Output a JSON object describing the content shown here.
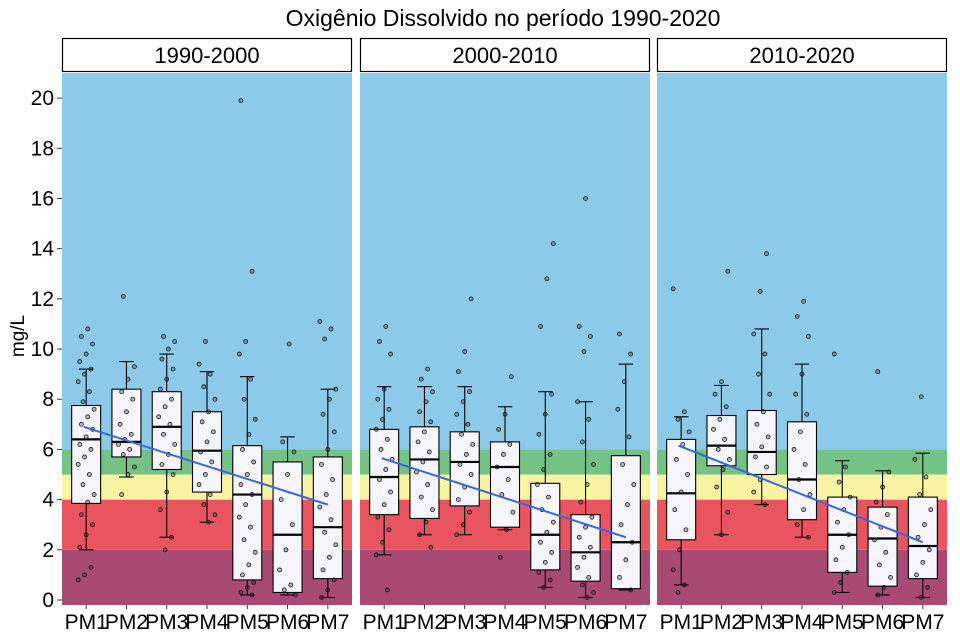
{
  "chart_data": {
    "type": "box",
    "title": "Oxigênio Dissolvido no período 1990-2020",
    "ylabel": "mg/L",
    "xlabel": "",
    "ylim": [
      -0.2,
      21.0
    ],
    "yticks": [
      0,
      2,
      4,
      6,
      8,
      10,
      12,
      14,
      16,
      18,
      20
    ],
    "categories": [
      "PM1",
      "PM2",
      "PM3",
      "PM4",
      "PM5",
      "PM6",
      "PM7"
    ],
    "background_bands": [
      {
        "from": -0.2,
        "to": 2,
        "color": "#a94a75"
      },
      {
        "from": 2,
        "to": 4,
        "color": "#e85560"
      },
      {
        "from": 4,
        "to": 5,
        "color": "#f8f4a3"
      },
      {
        "from": 5,
        "to": 6,
        "color": "#75c287"
      },
      {
        "from": 6,
        "to": 21.0,
        "color": "#8dcaea"
      }
    ],
    "colors": {
      "box_fill": "#f5f5fb",
      "trend_line": "#3a66e3",
      "point": "#000000"
    },
    "panels": [
      {
        "label": "1990-2000",
        "boxes": [
          {
            "category": "PM1",
            "low": 2.0,
            "q1": 3.85,
            "median": 6.4,
            "q3": 7.75,
            "high": 9.2,
            "points": [
              0.8,
              1.0,
              1.3,
              2.1,
              2.6,
              3.0,
              3.4,
              3.9,
              4.2,
              4.6,
              5.0,
              5.4,
              5.7,
              6.0,
              6.2,
              6.5,
              6.8,
              7.0,
              7.3,
              7.6,
              7.9,
              8.3,
              8.7,
              9.0,
              9.2,
              9.5,
              9.8,
              10.2,
              10.5,
              10.8
            ]
          },
          {
            "category": "PM2",
            "low": 4.9,
            "q1": 5.7,
            "median": 6.3,
            "q3": 8.4,
            "high": 9.5,
            "points": [
              4.2,
              5.0,
              5.3,
              5.8,
              6.0,
              6.2,
              6.4,
              6.6,
              7.0,
              7.5,
              8.0,
              8.3,
              8.8,
              9.3,
              12.1
            ]
          },
          {
            "category": "PM3",
            "low": 2.5,
            "q1": 5.2,
            "median": 6.9,
            "q3": 8.3,
            "high": 9.8,
            "points": [
              2.0,
              2.5,
              3.6,
              4.3,
              5.0,
              5.4,
              5.8,
              6.2,
              6.6,
              7.0,
              7.3,
              7.7,
              8.0,
              8.4,
              8.8,
              9.2,
              9.6,
              10.0,
              10.3,
              10.5
            ]
          },
          {
            "category": "PM4",
            "low": 3.1,
            "q1": 4.3,
            "median": 5.95,
            "q3": 7.5,
            "high": 9.1,
            "points": [
              3.1,
              3.4,
              3.8,
              4.2,
              4.6,
              5.0,
              5.5,
              5.9,
              6.3,
              6.7,
              7.1,
              7.5,
              8.0,
              8.5,
              9.0,
              9.4,
              10.3
            ]
          },
          {
            "category": "PM5",
            "low": 0.2,
            "q1": 0.8,
            "median": 4.2,
            "q3": 6.15,
            "high": 8.9,
            "points": [
              0.2,
              0.3,
              0.5,
              0.7,
              1.0,
              1.4,
              1.9,
              2.4,
              2.9,
              3.3,
              3.8,
              4.2,
              4.6,
              5.0,
              5.5,
              6.0,
              6.6,
              7.2,
              8.0,
              8.8,
              9.8,
              10.3,
              13.1,
              19.9
            ]
          },
          {
            "category": "PM6",
            "low": 0.2,
            "q1": 0.3,
            "median": 2.6,
            "q3": 5.5,
            "high": 6.5,
            "points": [
              0.2,
              0.4,
              0.6,
              1.2,
              2.0,
              3.0,
              4.0,
              5.0,
              5.9,
              6.3,
              10.2
            ]
          },
          {
            "category": "PM7",
            "low": 0.1,
            "q1": 0.85,
            "median": 2.9,
            "q3": 5.7,
            "high": 8.4,
            "points": [
              0.1,
              0.4,
              0.8,
              1.2,
              1.7,
              2.2,
              2.7,
              3.2,
              3.7,
              4.2,
              4.8,
              5.4,
              6.0,
              6.7,
              7.4,
              8.0,
              8.4,
              10.4,
              10.8,
              11.1
            ]
          }
        ],
        "trend": {
          "x0": 0.94,
          "y0": 6.9,
          "x1": 7.0,
          "y1": 3.8
        }
      },
      {
        "label": "2000-2010",
        "boxes": [
          {
            "category": "PM1",
            "low": 1.8,
            "q1": 3.4,
            "median": 4.9,
            "q3": 6.8,
            "high": 8.5,
            "points": [
              0.4,
              1.8,
              2.3,
              2.8,
              3.3,
              3.8,
              4.3,
              4.8,
              5.2,
              5.6,
              6.0,
              6.4,
              6.8,
              7.2,
              7.6,
              8.0,
              8.4,
              9.8,
              10.3,
              10.9
            ]
          },
          {
            "category": "PM2",
            "low": 2.6,
            "q1": 3.25,
            "median": 5.6,
            "q3": 6.9,
            "high": 8.5,
            "points": [
              2.1,
              2.6,
              3.1,
              3.6,
              4.1,
              4.6,
              5.1,
              5.5,
              5.9,
              6.3,
              6.7,
              7.1,
              7.5,
              7.9,
              8.3,
              8.8,
              9.2
            ]
          },
          {
            "category": "PM3",
            "low": 2.6,
            "q1": 3.75,
            "median": 5.5,
            "q3": 6.7,
            "high": 8.5,
            "points": [
              2.6,
              3.0,
              3.5,
              4.0,
              4.5,
              5.0,
              5.4,
              5.8,
              6.2,
              6.6,
              7.0,
              7.4,
              7.9,
              8.3,
              9.1,
              9.9,
              12.0
            ]
          },
          {
            "category": "PM4",
            "low": 2.8,
            "q1": 2.9,
            "median": 5.3,
            "q3": 6.3,
            "high": 7.7,
            "points": [
              1.7,
              2.8,
              3.5,
              4.2,
              4.8,
              5.3,
              5.8,
              6.2,
              6.8,
              7.4,
              8.9
            ]
          },
          {
            "category": "PM5",
            "low": 0.5,
            "q1": 1.2,
            "median": 2.6,
            "q3": 4.65,
            "high": 8.3,
            "points": [
              0.5,
              0.8,
              1.1,
              1.5,
              1.9,
              2.3,
              2.7,
              3.1,
              3.6,
              4.1,
              4.6,
              5.2,
              5.8,
              6.6,
              7.4,
              8.2,
              10.9,
              12.8,
              14.2
            ]
          },
          {
            "category": "PM6",
            "low": 0.1,
            "q1": 0.75,
            "median": 1.9,
            "q3": 3.4,
            "high": 7.9,
            "points": [
              0.1,
              0.3,
              0.6,
              0.9,
              1.3,
              1.7,
              2.1,
              2.5,
              2.9,
              3.3,
              3.9,
              4.6,
              5.4,
              6.3,
              7.2,
              7.9,
              9.9,
              10.5,
              10.9,
              16.0
            ]
          },
          {
            "category": "PM7",
            "low": 0.4,
            "q1": 0.45,
            "median": 2.3,
            "q3": 5.75,
            "high": 9.4,
            "points": [
              0.4,
              0.9,
              1.6,
              2.3,
              3.0,
              3.8,
              4.6,
              5.4,
              6.5,
              7.6,
              8.7,
              9.8,
              10.6
            ]
          }
        ],
        "trend": {
          "x0": 0.94,
          "y0": 5.65,
          "x1": 7.0,
          "y1": 2.5
        }
      },
      {
        "label": "2010-2020",
        "boxes": [
          {
            "category": "PM1",
            "low": 0.6,
            "q1": 2.4,
            "median": 4.25,
            "q3": 6.4,
            "high": 7.3,
            "points": [
              0.3,
              0.6,
              1.2,
              2.0,
              2.8,
              3.6,
              4.3,
              5.0,
              5.6,
              6.2,
              6.7,
              7.2,
              7.5,
              12.4
            ]
          },
          {
            "category": "PM2",
            "low": 2.6,
            "q1": 5.35,
            "median": 6.15,
            "q3": 7.35,
            "high": 8.55,
            "points": [
              2.6,
              3.5,
              4.5,
              5.2,
              5.6,
              6.0,
              6.4,
              6.8,
              7.2,
              7.7,
              8.2,
              8.7,
              13.1
            ]
          },
          {
            "category": "PM3",
            "low": 3.8,
            "q1": 5.0,
            "median": 5.9,
            "q3": 7.55,
            "high": 10.8,
            "points": [
              3.8,
              4.3,
              4.8,
              5.3,
              5.7,
              6.1,
              6.5,
              7.0,
              7.5,
              8.2,
              9.0,
              9.8,
              10.6,
              12.3,
              13.8
            ]
          },
          {
            "category": "PM4",
            "low": 2.5,
            "q1": 3.2,
            "median": 4.8,
            "q3": 7.1,
            "high": 9.4,
            "points": [
              2.5,
              3.0,
              3.6,
              4.2,
              4.8,
              5.4,
              6.0,
              6.7,
              7.4,
              8.2,
              9.0,
              10.5,
              11.3,
              11.9
            ]
          },
          {
            "category": "PM5",
            "low": 0.3,
            "q1": 1.1,
            "median": 2.6,
            "q3": 4.1,
            "high": 5.55,
            "points": [
              0.3,
              0.7,
              1.1,
              1.6,
              2.1,
              2.6,
              3.1,
              3.6,
              4.1,
              4.7,
              5.3,
              9.8
            ]
          },
          {
            "category": "PM6",
            "low": 0.2,
            "q1": 0.55,
            "median": 2.45,
            "q3": 3.7,
            "high": 5.15,
            "points": [
              0.2,
              0.5,
              0.9,
              1.4,
              1.9,
              2.4,
              2.9,
              3.4,
              3.9,
              4.5,
              5.1,
              9.1
            ]
          },
          {
            "category": "PM7",
            "low": 0.1,
            "q1": 0.85,
            "median": 2.15,
            "q3": 4.1,
            "high": 5.85,
            "points": [
              0.1,
              0.5,
              1.0,
              1.5,
              2.0,
              2.5,
              3.0,
              3.6,
              4.2,
              4.9,
              5.6,
              8.1
            ]
          }
        ],
        "trend": {
          "x0": 0.94,
          "y0": 6.15,
          "x1": 7.0,
          "y1": 2.3
        }
      }
    ]
  }
}
